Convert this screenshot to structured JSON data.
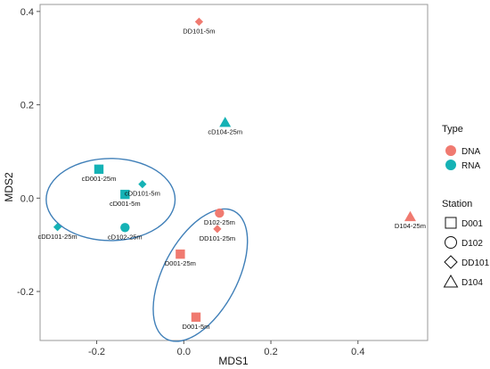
{
  "chart_data": {
    "type": "scatter",
    "xlabel": "MDS1",
    "ylabel": "MDS2",
    "xlim": [
      -0.33,
      0.56
    ],
    "ylim": [
      -0.305,
      0.415
    ],
    "xticks": [
      -0.2,
      0.0,
      0.2,
      0.4
    ],
    "xtick_labels": [
      "-0.2",
      "0.0",
      "0.2",
      "0.4"
    ],
    "yticks": [
      -0.2,
      0.0,
      0.2,
      0.4
    ],
    "ytick_labels": [
      "-0.2",
      "0.0",
      "0.2",
      "0.4"
    ],
    "grid": false,
    "colors": {
      "DNA": "#F07A70",
      "RNA": "#15B2B5",
      "ellipse": "#3F7FB8"
    },
    "points": [
      {
        "label": "DD101-5m",
        "x": 0.035,
        "y": 0.378,
        "type": "DNA",
        "station": "DD101"
      },
      {
        "label": "cD104-25m",
        "x": 0.095,
        "y": 0.162,
        "type": "RNA",
        "station": "D104"
      },
      {
        "label": "cD001-25m",
        "x": -0.195,
        "y": 0.062,
        "type": "RNA",
        "station": "D001"
      },
      {
        "label": "cD001-5m",
        "x": -0.135,
        "y": 0.008,
        "type": "RNA",
        "station": "D001"
      },
      {
        "label": "cDD101-5m",
        "x": -0.095,
        "y": 0.03,
        "type": "RNA",
        "station": "DD101"
      },
      {
        "label": "cDD101-25m",
        "x": -0.29,
        "y": -0.062,
        "type": "RNA",
        "station": "DD101"
      },
      {
        "label": "cD102-25m",
        "x": -0.135,
        "y": -0.063,
        "type": "RNA",
        "station": "D102"
      },
      {
        "label": "D102-25m",
        "x": 0.082,
        "y": -0.032,
        "type": "DNA",
        "station": "D102"
      },
      {
        "label": "DD101-25m",
        "x": 0.077,
        "y": -0.066,
        "type": "DNA",
        "station": "DD101"
      },
      {
        "label": "D001-25m",
        "x": -0.008,
        "y": -0.12,
        "type": "DNA",
        "station": "D001"
      },
      {
        "label": "D001-5m",
        "x": 0.028,
        "y": -0.255,
        "type": "DNA",
        "station": "D001"
      },
      {
        "label": "D104-25m",
        "x": 0.52,
        "y": -0.04,
        "type": "DNA",
        "station": "D104"
      }
    ],
    "legend": {
      "placement": "right",
      "type_title": "Type",
      "type_items": [
        {
          "name": "DNA",
          "color": "#F07A70"
        },
        {
          "name": "RNA",
          "color": "#15B2B5"
        }
      ],
      "station_title": "Station",
      "station_items": [
        {
          "name": "D001",
          "shape": "square"
        },
        {
          "name": "D102",
          "shape": "circle"
        },
        {
          "name": "DD101",
          "shape": "diamond"
        },
        {
          "name": "D104",
          "shape": "triangle"
        }
      ]
    }
  }
}
